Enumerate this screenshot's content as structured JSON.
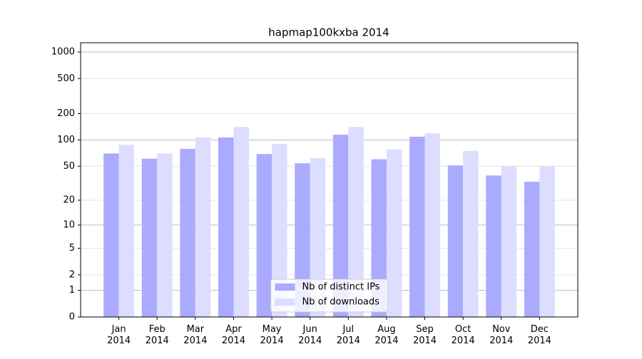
{
  "chart_data": {
    "type": "bar",
    "title": "hapmap100kxba 2014",
    "scale": "log1p",
    "categories": [
      [
        "Jan",
        "2014"
      ],
      [
        "Feb",
        "2014"
      ],
      [
        "Mar",
        "2014"
      ],
      [
        "Apr",
        "2014"
      ],
      [
        "May",
        "2014"
      ],
      [
        "Jun",
        "2014"
      ],
      [
        "Jul",
        "2014"
      ],
      [
        "Aug",
        "2014"
      ],
      [
        "Sep",
        "2014"
      ],
      [
        "Oct",
        "2014"
      ],
      [
        "Nov",
        "2014"
      ],
      [
        "Dec",
        "2014"
      ]
    ],
    "series": [
      {
        "name": "Nb of distinct IPs",
        "color": "#aaaaff",
        "values": [
          70,
          61,
          79,
          107,
          69,
          54,
          115,
          60,
          109,
          51,
          39,
          33
        ]
      },
      {
        "name": "Nb of downloads",
        "color": "#ddddff",
        "values": [
          88,
          70,
          107,
          141,
          90,
          62,
          141,
          78,
          119,
          75,
          50,
          50
        ]
      }
    ],
    "ylim": [
      0,
      1273
    ],
    "yticks": [
      0,
      1,
      2,
      5,
      10,
      20,
      50,
      100,
      200,
      500,
      1000
    ],
    "grid": true,
    "legend": "lower center"
  }
}
